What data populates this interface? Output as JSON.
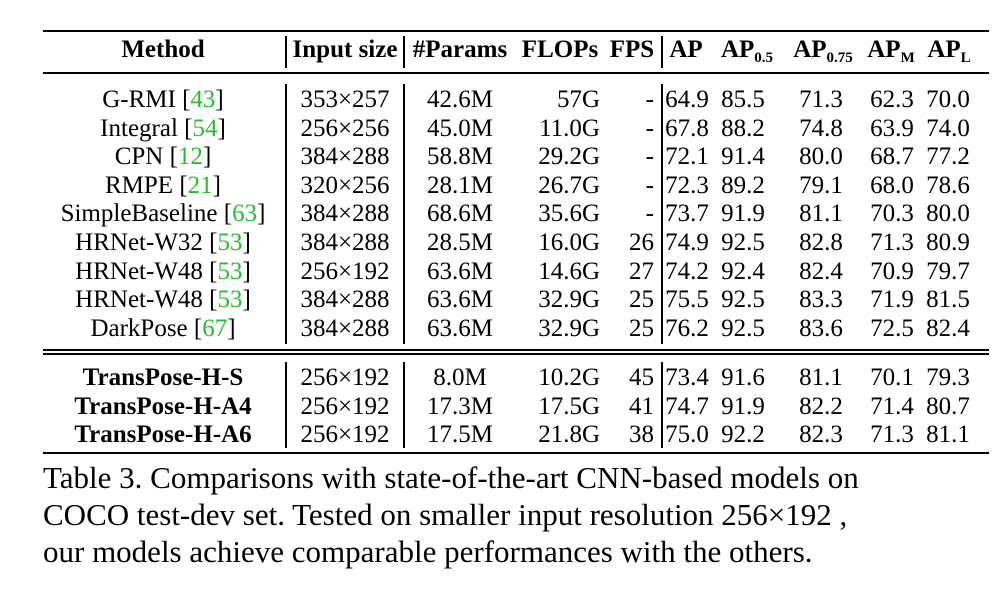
{
  "table": {
    "headers": {
      "method": "Method",
      "input_size": "Input size",
      "params": "#Params",
      "flops": "FLOPs",
      "fps": "FPS",
      "ap": "AP",
      "ap50": {
        "base": "AP",
        "sub": "0.5"
      },
      "ap75": {
        "base": "AP",
        "sub": "0.75"
      },
      "apm": {
        "base": "AP",
        "sub": "M"
      },
      "apl": {
        "base": "AP",
        "sub": "L"
      }
    },
    "cnn_rows": [
      {
        "name": "G-RMI",
        "cite": "43",
        "input": "353×257",
        "params": "42.6M",
        "flops": "57G",
        "fps": "-",
        "ap": "64.9",
        "ap50": "85.5",
        "ap75": "71.3",
        "apm": "62.3",
        "apl": "70.0"
      },
      {
        "name": "Integral",
        "cite": "54",
        "input": "256×256",
        "params": "45.0M",
        "flops": "11.0G",
        "fps": "-",
        "ap": "67.8",
        "ap50": "88.2",
        "ap75": "74.8",
        "apm": "63.9",
        "apl": "74.0"
      },
      {
        "name": "CPN",
        "cite": "12",
        "input": "384×288",
        "params": "58.8M",
        "flops": "29.2G",
        "fps": "-",
        "ap": "72.1",
        "ap50": "91.4",
        "ap75": "80.0",
        "apm": "68.7",
        "apl": "77.2"
      },
      {
        "name": "RMPE",
        "cite": "21",
        "input": "320×256",
        "params": "28.1M",
        "flops": "26.7G",
        "fps": "-",
        "ap": "72.3",
        "ap50": "89.2",
        "ap75": "79.1",
        "apm": "68.0",
        "apl": "78.6"
      },
      {
        "name": "SimpleBaseline",
        "cite": "63",
        "input": "384×288",
        "params": "68.6M",
        "flops": "35.6G",
        "fps": "-",
        "ap": "73.7",
        "ap50": "91.9",
        "ap75": "81.1",
        "apm": "70.3",
        "apl": "80.0"
      },
      {
        "name": "HRNet-W32",
        "cite": "53",
        "input": "384×288",
        "params": "28.5M",
        "flops": "16.0G",
        "fps": "26",
        "ap": "74.9",
        "ap50": "92.5",
        "ap75": "82.8",
        "apm": "71.3",
        "apl": "80.9"
      },
      {
        "name": "HRNet-W48",
        "cite": "53",
        "input": "256×192",
        "params": "63.6M",
        "flops": "14.6G",
        "fps": "27",
        "ap": "74.2",
        "ap50": "92.4",
        "ap75": "82.4",
        "apm": "70.9",
        "apl": "79.7"
      },
      {
        "name": "HRNet-W48",
        "cite": "53",
        "input": "384×288",
        "params": "63.6M",
        "flops": "32.9G",
        "fps": "25",
        "ap": "75.5",
        "ap50": "92.5",
        "ap75": "83.3",
        "apm": "71.9",
        "apl": "81.5"
      },
      {
        "name": "DarkPose",
        "cite": "67",
        "input": "384×288",
        "params": "63.6M",
        "flops": "32.9G",
        "fps": "25",
        "ap": "76.2",
        "ap50": "92.5",
        "ap75": "83.6",
        "apm": "72.5",
        "apl": "82.4"
      }
    ],
    "ours_rows": [
      {
        "name": "TransPose-H-S",
        "input": "256×192",
        "params": "8.0M",
        "flops": "10.2G",
        "fps": "45",
        "ap": "73.4",
        "ap50": "91.6",
        "ap75": "81.1",
        "apm": "70.1",
        "apl": "79.3"
      },
      {
        "name": "TransPose-H-A4",
        "input": "256×192",
        "params": "17.3M",
        "flops": "17.5G",
        "fps": "41",
        "ap": "74.7",
        "ap50": "91.9",
        "ap75": "82.2",
        "apm": "71.4",
        "apl": "80.7"
      },
      {
        "name": "TransPose-H-A6",
        "input": "256×192",
        "params": "17.5M",
        "flops": "21.8G",
        "fps": "38",
        "ap": "75.0",
        "ap50": "92.2",
        "ap75": "82.3",
        "apm": "71.3",
        "apl": "81.1"
      }
    ]
  },
  "caption": {
    "line1": "Table 3. Comparisons with state-of-the-art CNN-based models on",
    "line2": "COCO test-dev set. Tested on smaller input resolution 256×192 ,",
    "line3": "our models achieve comparable performances with the others."
  },
  "colors": {
    "cite": "#22c02c",
    "text": "#000000"
  }
}
